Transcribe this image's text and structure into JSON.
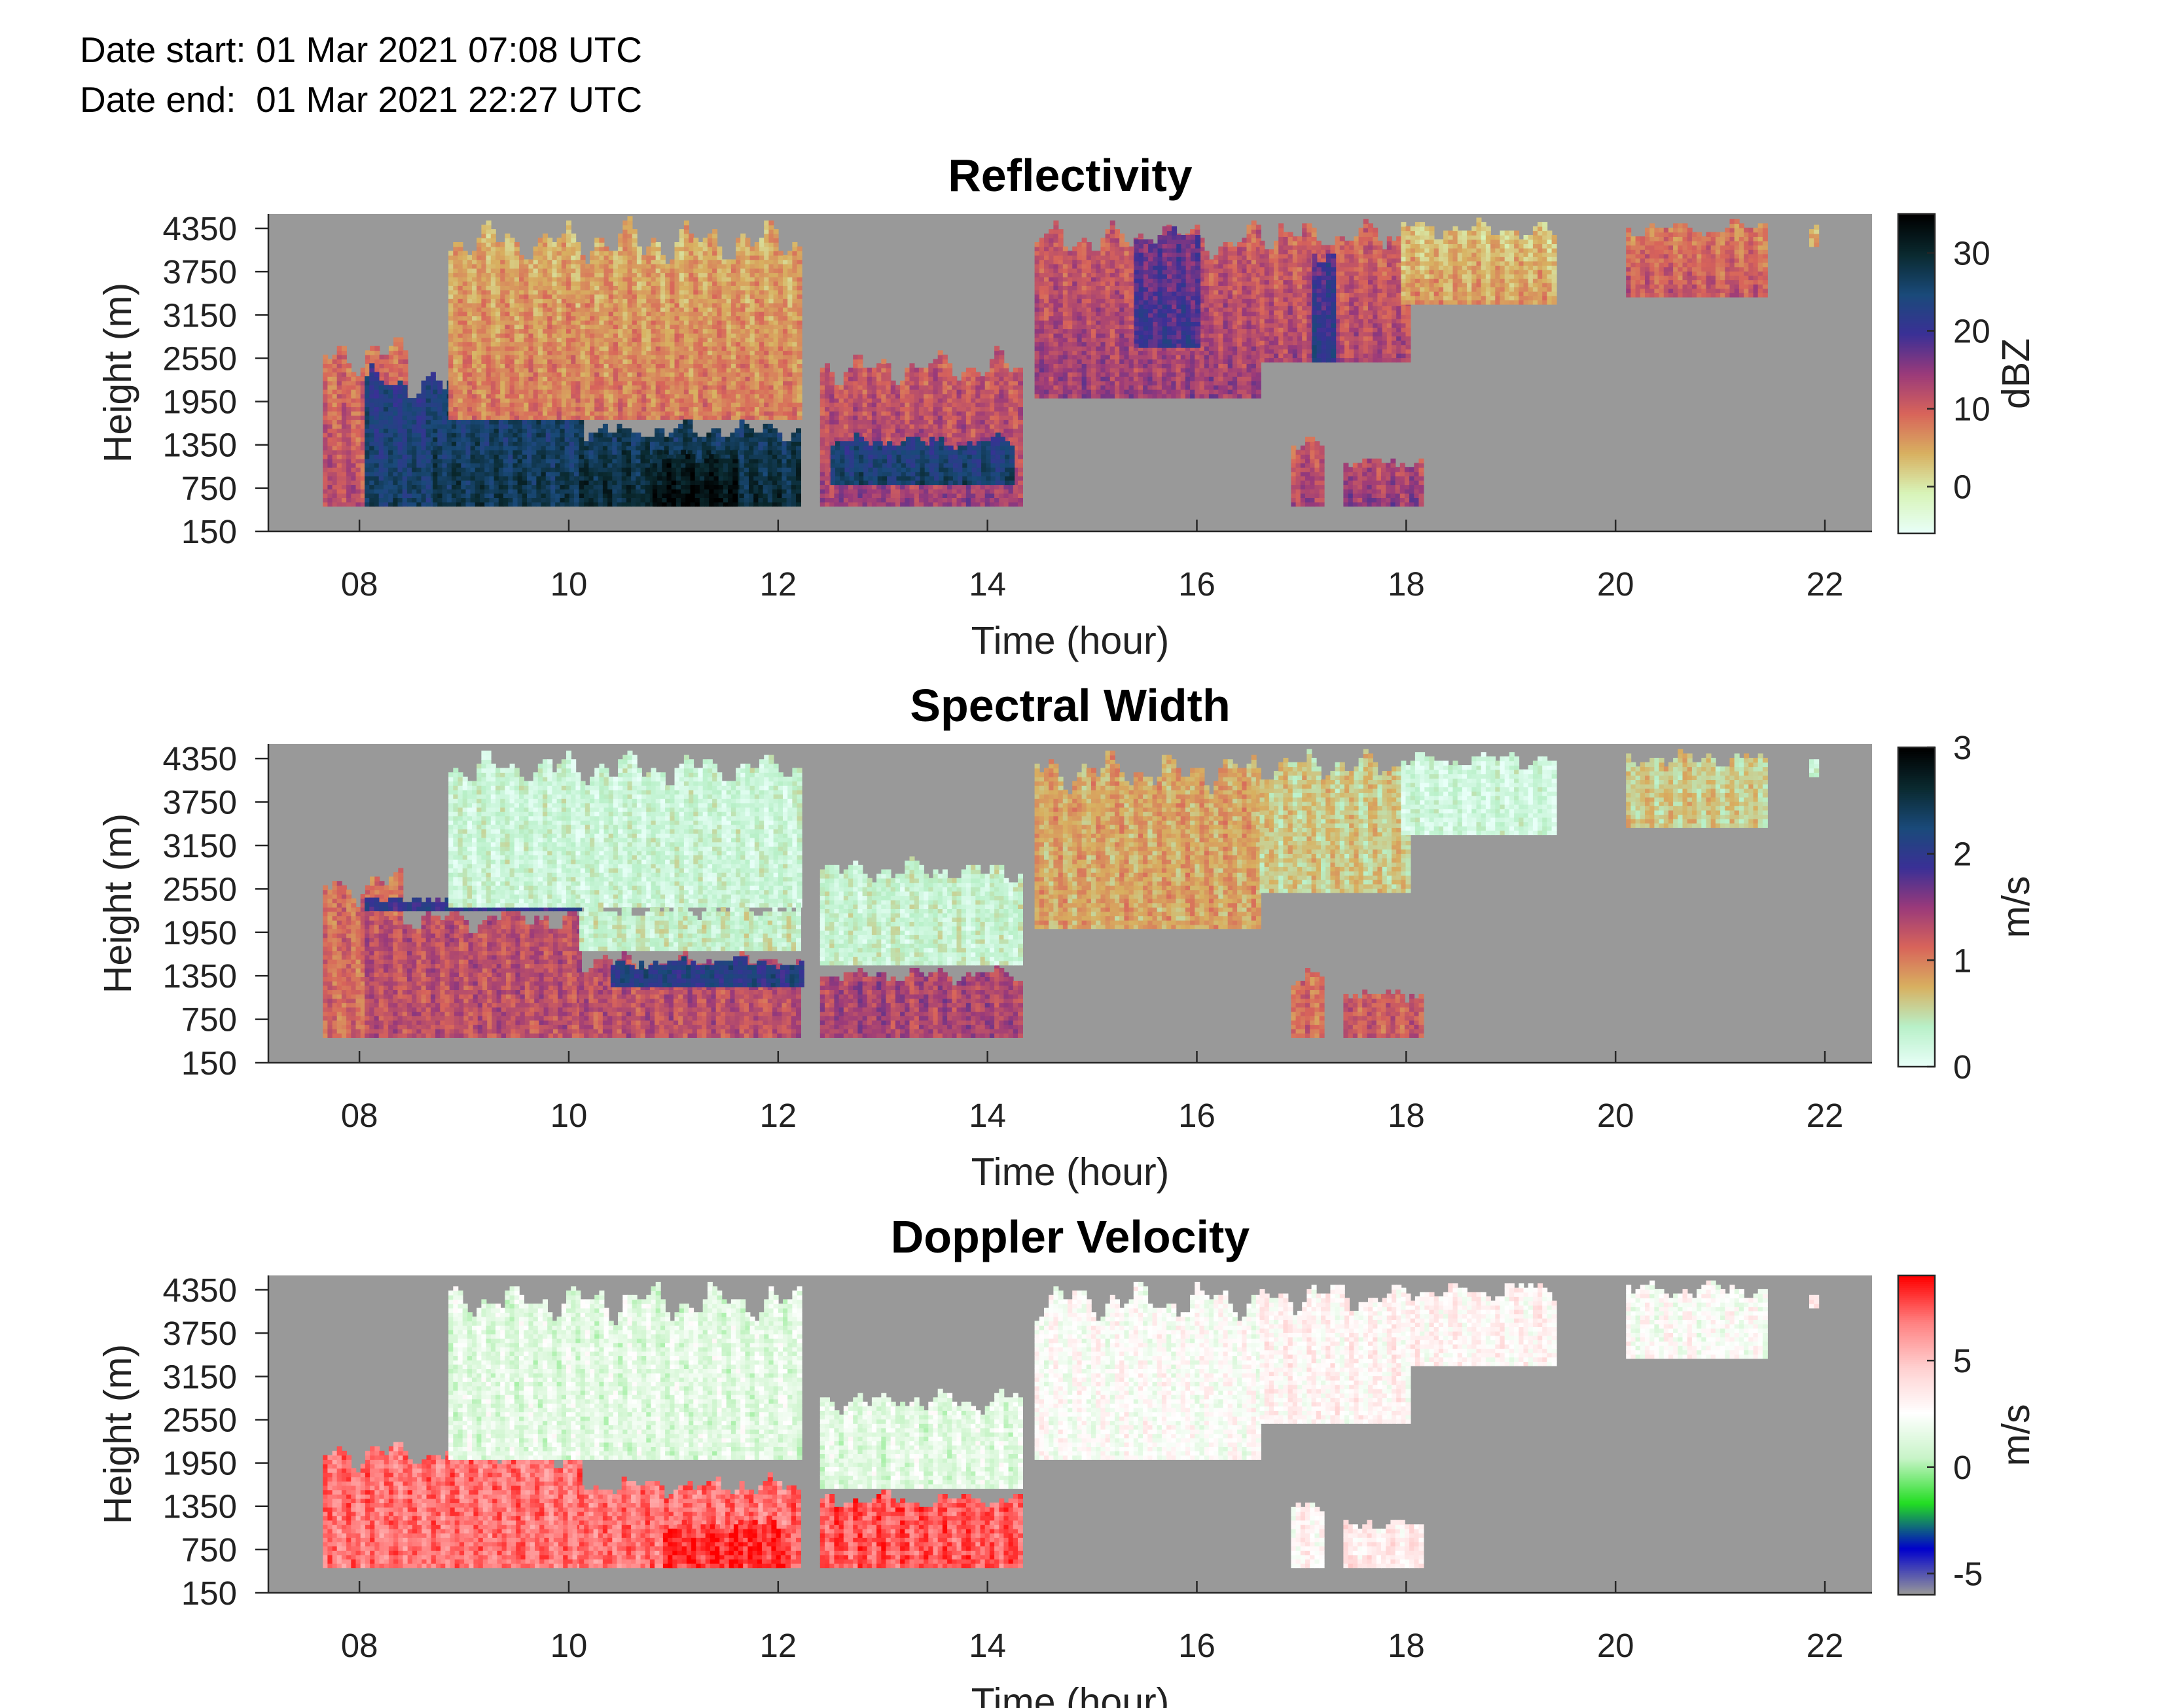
{
  "header": {
    "date_start": "Date start: 01 Mar 2021 07:08 UTC",
    "date_end": "Date end:  01 Mar 2021 22:27 UTC"
  },
  "chart_data": [
    {
      "type": "heatmap",
      "title": "Reflectivity",
      "xlabel": "Time (hour)",
      "ylabel": "Height (m)",
      "xlim": [
        7.13,
        22.45
      ],
      "ylim": [
        150,
        4550
      ],
      "x_ticks": [
        "08",
        "10",
        "12",
        "14",
        "16",
        "18",
        "20",
        "22"
      ],
      "x_tick_values": [
        8,
        10,
        12,
        14,
        16,
        18,
        20,
        22
      ],
      "y_ticks": [
        "150",
        "750",
        "1350",
        "1950",
        "2550",
        "3150",
        "3750",
        "4350"
      ],
      "y_tick_values": [
        150,
        750,
        1350,
        1950,
        2550,
        3150,
        3750,
        4350
      ],
      "background_color": "#999999",
      "colorbar": {
        "label": "dBZ",
        "ticks": [
          "0",
          "10",
          "20",
          "30"
        ],
        "tick_values": [
          0,
          10,
          20,
          30
        ],
        "range": [
          -6,
          35
        ],
        "colors": [
          "#e8fff8",
          "#d8f4b8",
          "#d8b060",
          "#d8645a",
          "#9a3a7a",
          "#3a3096",
          "#1a4a7a",
          "#0a2a30",
          "#000000"
        ]
      },
      "regions": [
        {
          "t0": 7.65,
          "t1": 8.45,
          "h0": 500,
          "h1": 2900,
          "base": 12
        },
        {
          "t0": 8.05,
          "t1": 8.7,
          "h0": 500,
          "h1": 2450,
          "base": 26
        },
        {
          "t0": 8.7,
          "t1": 10.1,
          "h0": 500,
          "h1": 2400,
          "base": 28
        },
        {
          "t0": 8.85,
          "t1": 12.2,
          "h0": 1700,
          "h1": 4500,
          "base": 8
        },
        {
          "t0": 10.1,
          "t1": 12.2,
          "h0": 500,
          "h1": 1700,
          "base": 30
        },
        {
          "t0": 10.8,
          "t1": 11.6,
          "h0": 500,
          "h1": 1300,
          "base": 34
        },
        {
          "t0": 12.4,
          "t1": 14.3,
          "h0": 500,
          "h1": 2700,
          "base": 14
        },
        {
          "t0": 12.5,
          "t1": 14.25,
          "h0": 800,
          "h1": 1500,
          "base": 26
        },
        {
          "t0": 14.45,
          "t1": 16.6,
          "h0": 2000,
          "h1": 4500,
          "base": 14
        },
        {
          "t0": 15.4,
          "t1": 16.0,
          "h0": 2700,
          "h1": 4500,
          "base": 20
        },
        {
          "t0": 16.6,
          "t1": 18.0,
          "h0": 2500,
          "h1": 4500,
          "base": 13
        },
        {
          "t0": 17.1,
          "t1": 17.3,
          "h0": 2500,
          "h1": 4300,
          "base": 22
        },
        {
          "t0": 17.95,
          "t1": 19.4,
          "h0": 3300,
          "h1": 4500,
          "base": 6
        },
        {
          "t0": 20.1,
          "t1": 21.45,
          "h0": 3400,
          "h1": 4500,
          "base": 11
        },
        {
          "t0": 21.85,
          "t1": 21.9,
          "h0": 4100,
          "h1": 4400,
          "base": 4
        },
        {
          "t0": 16.9,
          "t1": 17.2,
          "h0": 500,
          "h1": 1500,
          "base": 14
        },
        {
          "t0": 17.4,
          "t1": 18.15,
          "h0": 500,
          "h1": 1200,
          "base": 15
        }
      ]
    },
    {
      "type": "heatmap",
      "title": "Spectral Width",
      "xlabel": "Time (hour)",
      "ylabel": "Height (m)",
      "xlim": [
        7.13,
        22.45
      ],
      "ylim": [
        150,
        4550
      ],
      "x_ticks": [
        "08",
        "10",
        "12",
        "14",
        "16",
        "18",
        "20",
        "22"
      ],
      "x_tick_values": [
        8,
        10,
        12,
        14,
        16,
        18,
        20,
        22
      ],
      "y_ticks": [
        "150",
        "750",
        "1350",
        "1950",
        "2550",
        "3150",
        "3750",
        "4350"
      ],
      "y_tick_values": [
        150,
        750,
        1350,
        1950,
        2550,
        3150,
        3750,
        4350
      ],
      "background_color": "#999999",
      "colorbar": {
        "label": "m/s",
        "ticks": [
          "0",
          "1",
          "2",
          "3"
        ],
        "tick_values": [
          0,
          1,
          2,
          3
        ],
        "range": [
          0,
          3
        ],
        "colors": [
          "#e8fff8",
          "#b8f0c8",
          "#d8b060",
          "#d8645a",
          "#9a3a7a",
          "#3a3096",
          "#1a4a7a",
          "#0a2a30",
          "#000000"
        ]
      },
      "regions": [
        {
          "t0": 7.65,
          "t1": 8.4,
          "h0": 500,
          "h1": 2900,
          "base": 1.1
        },
        {
          "t0": 8.05,
          "t1": 10.1,
          "h0": 500,
          "h1": 2400,
          "base": 1.3
        },
        {
          "t0": 8.05,
          "t1": 10.1,
          "h0": 2250,
          "h1": 2450,
          "base": 2.0
        },
        {
          "t0": 8.85,
          "t1": 12.2,
          "h0": 2300,
          "h1": 4500,
          "base": 0.25
        },
        {
          "t0": 10.1,
          "t1": 12.2,
          "h0": 500,
          "h1": 1700,
          "base": 1.3
        },
        {
          "t0": 10.4,
          "t1": 12.2,
          "h0": 1200,
          "h1": 1600,
          "base": 2.1
        },
        {
          "t0": 10.1,
          "t1": 12.2,
          "h0": 1700,
          "h1": 2350,
          "base": 0.35
        },
        {
          "t0": 12.4,
          "t1": 14.3,
          "h0": 500,
          "h1": 1500,
          "base": 1.4
        },
        {
          "t0": 12.4,
          "t1": 14.3,
          "h0": 1500,
          "h1": 3000,
          "base": 0.3
        },
        {
          "t0": 14.45,
          "t1": 16.6,
          "h0": 2000,
          "h1": 4500,
          "base": 0.8
        },
        {
          "t0": 16.6,
          "t1": 18.0,
          "h0": 2500,
          "h1": 4500,
          "base": 0.6
        },
        {
          "t0": 17.95,
          "t1": 19.4,
          "h0": 3300,
          "h1": 4500,
          "base": 0.2
        },
        {
          "t0": 20.1,
          "t1": 21.45,
          "h0": 3400,
          "h1": 4500,
          "base": 0.6
        },
        {
          "t0": 21.85,
          "t1": 21.9,
          "h0": 4100,
          "h1": 4400,
          "base": 0.2
        },
        {
          "t0": 16.9,
          "t1": 17.2,
          "h0": 500,
          "h1": 1500,
          "base": 1.1
        },
        {
          "t0": 17.4,
          "t1": 18.15,
          "h0": 500,
          "h1": 1200,
          "base": 1.2
        }
      ]
    },
    {
      "type": "heatmap",
      "title": "Doppler Velocity",
      "xlabel": "Time (hour)",
      "ylabel": "Height (m)",
      "xlim": [
        7.13,
        22.45
      ],
      "ylim": [
        150,
        4550
      ],
      "x_ticks": [
        "08",
        "10",
        "12",
        "14",
        "16",
        "18",
        "20",
        "22"
      ],
      "x_tick_values": [
        8,
        10,
        12,
        14,
        16,
        18,
        20,
        22
      ],
      "y_ticks": [
        "150",
        "750",
        "1350",
        "1950",
        "2550",
        "3150",
        "3750",
        "4350"
      ],
      "y_tick_values": [
        150,
        750,
        1350,
        1950,
        2550,
        3150,
        3750,
        4350
      ],
      "background_color": "#999999",
      "colorbar": {
        "label": "m/s",
        "ticks": [
          "-5",
          "0",
          "5"
        ],
        "tick_values": [
          -5,
          0,
          5
        ],
        "range": [
          -6,
          9
        ],
        "colors": [
          "#999999",
          "#0000cc",
          "#22dd22",
          "#c8f4c8",
          "#ffffff",
          "#ffd0d0",
          "#ff8080",
          "#ff0000"
        ]
      },
      "regions": [
        {
          "t0": 7.65,
          "t1": 10.1,
          "h0": 500,
          "h1": 2300,
          "base": 7.0
        },
        {
          "t0": 8.85,
          "t1": 12.2,
          "h0": 2000,
          "h1": 4500,
          "base": 1.5
        },
        {
          "t0": 10.1,
          "t1": 12.2,
          "h0": 500,
          "h1": 1800,
          "base": 7.0
        },
        {
          "t0": 10.9,
          "t1": 12.1,
          "h0": 500,
          "h1": 1200,
          "base": 8.3
        },
        {
          "t0": 12.4,
          "t1": 14.3,
          "h0": 500,
          "h1": 1600,
          "base": 7.5
        },
        {
          "t0": 12.4,
          "t1": 14.3,
          "h0": 1600,
          "h1": 3000,
          "base": 1.5
        },
        {
          "t0": 14.45,
          "t1": 16.6,
          "h0": 2000,
          "h1": 4500,
          "base": 2.5
        },
        {
          "t0": 16.6,
          "t1": 18.0,
          "h0": 2500,
          "h1": 4500,
          "base": 3.0
        },
        {
          "t0": 17.95,
          "t1": 19.4,
          "h0": 3300,
          "h1": 4500,
          "base": 3.0
        },
        {
          "t0": 20.1,
          "t1": 21.45,
          "h0": 3400,
          "h1": 4500,
          "base": 2.5
        },
        {
          "t0": 21.85,
          "t1": 21.9,
          "h0": 4100,
          "h1": 4400,
          "base": 3.5
        },
        {
          "t0": 16.9,
          "t1": 17.2,
          "h0": 500,
          "h1": 1500,
          "base": 3.0
        },
        {
          "t0": 17.4,
          "t1": 18.15,
          "h0": 500,
          "h1": 1200,
          "base": 3.5
        }
      ]
    }
  ]
}
